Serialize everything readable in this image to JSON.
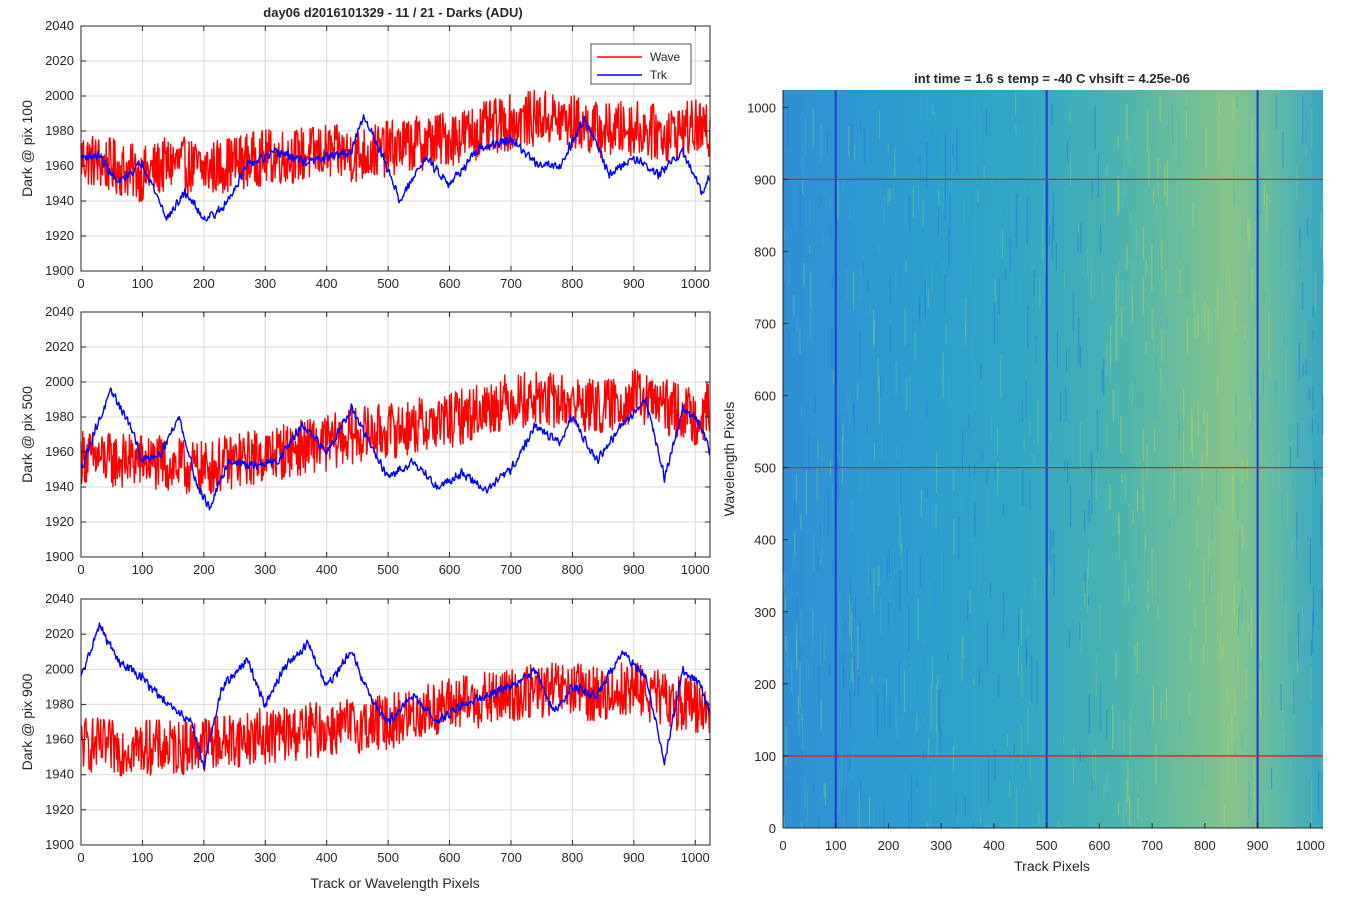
{
  "figure": {
    "title": "day06 d2016101329 - 11 / 21 - Darks (ADU)",
    "xlabel": "Track or Wavelength Pixels",
    "legend": [
      "Wave",
      "Trk"
    ]
  },
  "colors": {
    "wave": "#ff0000",
    "trk": "#0000ff",
    "grid": "#d9d9d9",
    "axis": "#262626",
    "image_base": "#2aa3cc",
    "image_warm": "#7cc98e",
    "image_dark": "#1e6fd6"
  },
  "chart_data": [
    {
      "type": "line",
      "ylabel": "Dark @ pix 100",
      "xlim": [
        0,
        1024
      ],
      "ylim": [
        1900,
        2040
      ],
      "xticks": [
        0,
        100,
        200,
        300,
        400,
        500,
        600,
        700,
        800,
        900,
        1000
      ],
      "yticks": [
        1900,
        1920,
        1940,
        1960,
        1980,
        2000,
        2020,
        2040
      ],
      "grid": true,
      "legend_position": "top-right",
      "series": [
        {
          "name": "Wave",
          "color": "#ff0000",
          "x": [
            0,
            50,
            100,
            150,
            200,
            250,
            300,
            350,
            400,
            450,
            500,
            550,
            600,
            650,
            700,
            750,
            800,
            850,
            900,
            950,
            1000,
            1024
          ],
          "y": [
            1965,
            1960,
            1955,
            1962,
            1958,
            1962,
            1965,
            1966,
            1968,
            1966,
            1970,
            1973,
            1976,
            1980,
            1985,
            1988,
            1985,
            1980,
            1982,
            1978,
            1982,
            1978
          ],
          "amplitude": 16
        },
        {
          "name": "Trk",
          "color": "#0000ff",
          "x": [
            0,
            30,
            60,
            100,
            140,
            170,
            200,
            230,
            270,
            320,
            370,
            400,
            440,
            460,
            480,
            520,
            560,
            600,
            650,
            700,
            740,
            780,
            820,
            860,
            900,
            940,
            980,
            1010,
            1024
          ],
          "y": [
            1965,
            1966,
            1950,
            1962,
            1930,
            1945,
            1930,
            1935,
            1960,
            1968,
            1962,
            1965,
            1968,
            1988,
            1975,
            1940,
            1965,
            1950,
            1970,
            1975,
            1962,
            1960,
            1988,
            1955,
            1965,
            1955,
            1968,
            1945,
            1955
          ],
          "amplitude": 5
        }
      ]
    },
    {
      "type": "line",
      "ylabel": "Dark @ pix 500",
      "xlim": [
        0,
        1024
      ],
      "ylim": [
        1900,
        2040
      ],
      "xticks": [
        0,
        100,
        200,
        300,
        400,
        500,
        600,
        700,
        800,
        900,
        1000
      ],
      "yticks": [
        1900,
        1920,
        1940,
        1960,
        1980,
        2000,
        2020,
        2040
      ],
      "grid": true,
      "series": [
        {
          "name": "Wave",
          "color": "#ff0000",
          "x": [
            0,
            50,
            100,
            150,
            200,
            250,
            300,
            350,
            400,
            450,
            500,
            550,
            600,
            650,
            700,
            750,
            800,
            850,
            900,
            950,
            1000,
            1024
          ],
          "y": [
            1958,
            1955,
            1955,
            1952,
            1950,
            1955,
            1958,
            1962,
            1965,
            1970,
            1972,
            1975,
            1978,
            1984,
            1990,
            1990,
            1988,
            1985,
            1992,
            1986,
            1980,
            1985
          ],
          "amplitude": 16
        },
        {
          "name": "Trk",
          "color": "#0000ff",
          "x": [
            0,
            20,
            50,
            80,
            100,
            130,
            160,
            190,
            210,
            240,
            280,
            320,
            360,
            400,
            440,
            470,
            500,
            540,
            580,
            620,
            660,
            700,
            740,
            780,
            800,
            840,
            880,
            920,
            950,
            980,
            1010,
            1024
          ],
          "y": [
            1950,
            1970,
            1995,
            1975,
            1955,
            1960,
            1980,
            1940,
            1928,
            1955,
            1952,
            1955,
            1975,
            1960,
            1985,
            1965,
            1945,
            1955,
            1940,
            1948,
            1938,
            1950,
            1975,
            1965,
            1980,
            1955,
            1975,
            1990,
            1945,
            1985,
            1975,
            1960
          ],
          "amplitude": 5
        }
      ]
    },
    {
      "type": "line",
      "ylabel": "Dark @ pix 900",
      "xlim": [
        0,
        1024
      ],
      "ylim": [
        1900,
        2040
      ],
      "xticks": [
        0,
        100,
        200,
        300,
        400,
        500,
        600,
        700,
        800,
        900,
        1000
      ],
      "yticks": [
        1900,
        1920,
        1940,
        1960,
        1980,
        2000,
        2020,
        2040
      ],
      "grid": true,
      "series": [
        {
          "name": "Wave",
          "color": "#ff0000",
          "x": [
            0,
            50,
            100,
            150,
            200,
            250,
            300,
            350,
            400,
            450,
            500,
            550,
            600,
            650,
            700,
            750,
            800,
            850,
            900,
            950,
            1000,
            1024
          ],
          "y": [
            1958,
            1955,
            1956,
            1955,
            1958,
            1960,
            1962,
            1964,
            1966,
            1968,
            1970,
            1975,
            1980,
            1982,
            1985,
            1988,
            1988,
            1985,
            1990,
            1982,
            1980,
            1978
          ],
          "amplitude": 16
        },
        {
          "name": "Trk",
          "color": "#0000ff",
          "x": [
            0,
            30,
            60,
            100,
            140,
            180,
            200,
            230,
            270,
            300,
            330,
            370,
            400,
            440,
            470,
            500,
            540,
            580,
            620,
            660,
            700,
            740,
            770,
            800,
            840,
            880,
            920,
            950,
            980,
            1010,
            1024
          ],
          "y": [
            1995,
            2025,
            2005,
            1995,
            1980,
            1970,
            1945,
            1990,
            2005,
            1980,
            2000,
            2015,
            1990,
            2010,
            1985,
            1970,
            1985,
            1970,
            1980,
            1985,
            1990,
            2000,
            1975,
            1990,
            1985,
            2010,
            1995,
            1948,
            2000,
            1990,
            1975
          ],
          "amplitude": 5
        }
      ]
    },
    {
      "type": "heatmap",
      "title": "int time = 1.6 s   temp = -40 C   vhsift = 4.25e-06",
      "xlabel": "Track Pixels",
      "ylabel": "Wavelength Pixels",
      "xlim": [
        0,
        1024
      ],
      "ylim": [
        0,
        1024
      ],
      "xticks": [
        0,
        100,
        200,
        300,
        400,
        500,
        600,
        700,
        800,
        900,
        1000
      ],
      "yticks": [
        0,
        100,
        200,
        300,
        400,
        500,
        600,
        700,
        800,
        900,
        1000
      ],
      "colormap": "parula",
      "vertical_marker_lines_x": [
        100,
        500,
        900
      ],
      "horizontal_marker_lines_y": [
        100,
        500,
        900
      ],
      "vertical_line_color": "#1e3ccf",
      "horizontal_line_color": "#e0201e"
    }
  ]
}
